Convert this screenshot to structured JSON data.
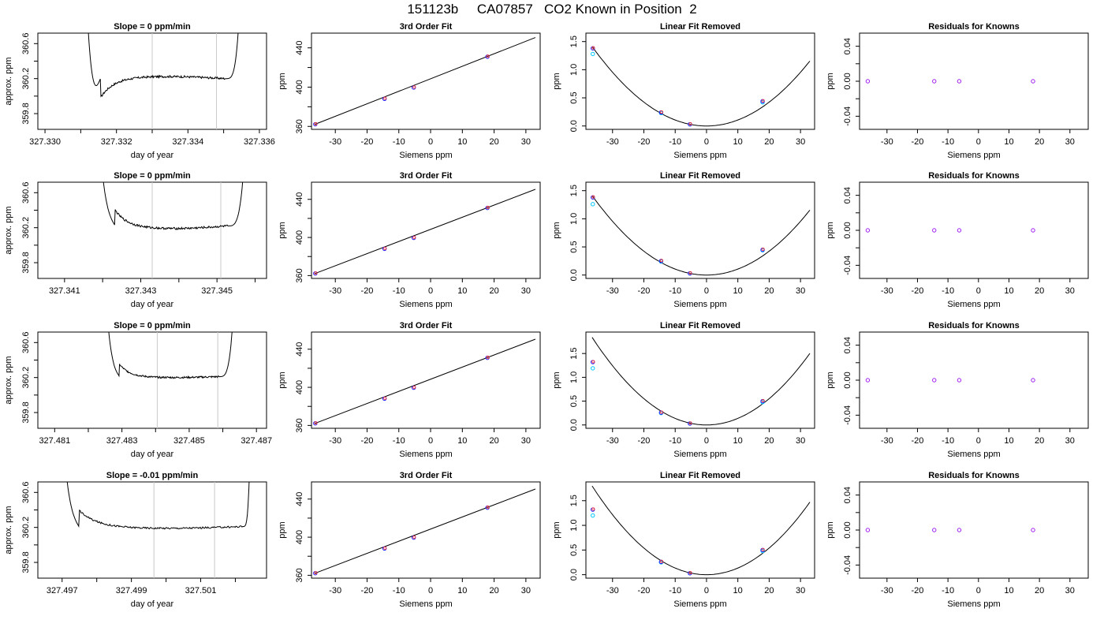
{
  "title": "151123b     CA07857   CO2 Known in Position  2",
  "colors": {
    "line": "#000000",
    "vline": "#c8c8c8",
    "point_blue": "#1f1fff",
    "point_cyan": "#00c8ff",
    "point_purple": "#a020f0",
    "point_red": "#ff3030"
  },
  "chart_data": [
    {
      "type": "line",
      "row": 1,
      "col": 1,
      "title": "Slope =  0  ppm/min",
      "xlabel": "day of year",
      "ylabel": "approx. ppm",
      "xlim": [
        327.3298,
        327.3362
      ],
      "ylim": [
        359.62,
        360.72
      ],
      "xticks": [
        327.33,
        327.331,
        327.332,
        327.333,
        327.334,
        327.335,
        327.336
      ],
      "xtick_labels": [
        "327.330",
        "",
        "327.332",
        "",
        "327.334",
        "",
        "327.336"
      ],
      "yticks": [
        359.8,
        360.0,
        360.2,
        360.4,
        360.6
      ],
      "ytick_labels": [
        "359.8",
        "",
        "360.2",
        "",
        "360.6"
      ],
      "trace": {
        "x0": 327.331,
        "x1": 327.3356,
        "rise": 0.12,
        "fall": 0.12,
        "base": 360.2,
        "plateau_start": 359.98,
        "noise": 0.012,
        "drift": 0.025
      },
      "vlines": [
        327.333,
        327.3348
      ]
    },
    {
      "type": "line",
      "row": 1,
      "col": 2,
      "title": "3rd Order Fit",
      "xlabel": "Siemens ppm",
      "ylabel": "ppm",
      "xlim": [
        -37.5,
        34.5
      ],
      "ylim": [
        357.0,
        455.0
      ],
      "xticks": [
        -30,
        -20,
        -10,
        0,
        10,
        20,
        30
      ],
      "xtick_labels": [
        "-30",
        "-20",
        "-10",
        "0",
        "10",
        "20",
        "30"
      ],
      "yticks": [
        360,
        380,
        400,
        420,
        440
      ],
      "ytick_labels": [
        "360",
        "",
        "400",
        "",
        "440"
      ],
      "fit": {
        "slope": 1.274,
        "intercept": 408.5,
        "x0": -36.5,
        "x1": 33.0
      },
      "points": {
        "x": [
          -36.3,
          -14.5,
          -5.3,
          17.9
        ],
        "y": [
          362.2,
          388.1,
          399.6,
          431.0
        ]
      }
    },
    {
      "type": "line",
      "row": 1,
      "col": 3,
      "title": "Linear Fit Removed",
      "xlabel": "Siemens ppm",
      "ylabel": "ppm",
      "xlim": [
        -38.5,
        34.5
      ],
      "ylim": [
        -0.06,
        1.65
      ],
      "xticks": [
        -30,
        -20,
        -10,
        0,
        10,
        20,
        30
      ],
      "xtick_labels": [
        "-30",
        "-20",
        "-10",
        "0",
        "10",
        "20",
        "30"
      ],
      "yticks": [
        0.0,
        0.5,
        1.0,
        1.5
      ],
      "ytick_labels": [
        "0.0",
        "0.5",
        "1.0",
        "1.5"
      ],
      "curve": {
        "a": 0.00106,
        "b": 0.0,
        "c": 0.0,
        "x0": -36.5,
        "x1": 33.0
      },
      "points": {
        "x": [
          -36.3,
          -14.5,
          -5.3,
          17.9
        ],
        "y": [
          1.38,
          0.24,
          0.03,
          0.44
        ]
      },
      "points_cyan": {
        "x": [
          -36.3,
          -14.5,
          -5.3,
          17.9
        ],
        "y": [
          1.28,
          0.23,
          0.03,
          0.42
        ]
      }
    },
    {
      "type": "scatter",
      "row": 1,
      "col": 4,
      "title": "Residuals for Knowns",
      "xlabel": "Siemens ppm",
      "ylabel": "ppm",
      "xlim": [
        -39.0,
        36.0
      ],
      "ylim": [
        -0.055,
        0.055
      ],
      "xticks": [
        -30,
        -20,
        -10,
        0,
        10,
        20,
        30
      ],
      "xtick_labels": [
        "-30",
        "-20",
        "-10",
        "0",
        "10",
        "20",
        "30"
      ],
      "yticks": [
        -0.04,
        -0.02,
        0.0,
        0.02,
        0.04
      ],
      "ytick_labels": [
        "-0.04",
        "",
        "0.00",
        "",
        "0.04"
      ],
      "points": {
        "x": [
          -36.3,
          -14.5,
          -6.3,
          17.9
        ],
        "y": [
          0.0,
          0.0,
          0.0,
          0.0
        ]
      }
    },
    {
      "type": "line",
      "row": 2,
      "col": 1,
      "title": "Slope =  0  ppm/min",
      "xlabel": "day of year",
      "ylabel": "approx. ppm",
      "xlim": [
        327.3403,
        327.3463
      ],
      "ylim": [
        359.62,
        360.72
      ],
      "xticks": [
        327.341,
        327.342,
        327.343,
        327.344,
        327.345,
        327.346
      ],
      "xtick_labels": [
        "327.341",
        "",
        "327.343",
        "",
        "327.345",
        ""
      ],
      "yticks": [
        359.8,
        360.0,
        360.2,
        360.4,
        360.6
      ],
      "ytick_labels": [
        "359.8",
        "",
        "360.2",
        "",
        "360.6"
      ],
      "trace": {
        "x0": 327.3417,
        "x1": 327.3459,
        "rise": 0.15,
        "fall": 0.15,
        "base": 360.22,
        "plateau_start": 360.4,
        "noise": 0.012,
        "drift": -0.03
      },
      "vlines": [
        327.3433,
        327.3451
      ]
    },
    {
      "type": "line",
      "row": 2,
      "col": 2,
      "title": "3rd Order Fit",
      "xlabel": "Siemens ppm",
      "ylabel": "ppm",
      "xlim": [
        -37.5,
        34.5
      ],
      "ylim": [
        357.0,
        458.0
      ],
      "xticks": [
        -30,
        -20,
        -10,
        0,
        10,
        20,
        30
      ],
      "xtick_labels": [
        "-30",
        "-20",
        "-10",
        "0",
        "10",
        "20",
        "30"
      ],
      "yticks": [
        360,
        380,
        400,
        420,
        440
      ],
      "ytick_labels": [
        "360",
        "",
        "400",
        "",
        "440"
      ],
      "fit": {
        "slope": 1.274,
        "intercept": 408.5,
        "x0": -36.5,
        "x1": 33.0
      },
      "points": {
        "x": [
          -36.3,
          -14.5,
          -5.3,
          17.9
        ],
        "y": [
          362.2,
          388.1,
          399.6,
          431.0
        ]
      }
    },
    {
      "type": "line",
      "row": 2,
      "col": 3,
      "title": "Linear Fit Removed",
      "xlabel": "Siemens ppm",
      "ylabel": "ppm",
      "xlim": [
        -38.5,
        34.5
      ],
      "ylim": [
        -0.06,
        1.65
      ],
      "xticks": [
        -30,
        -20,
        -10,
        0,
        10,
        20,
        30
      ],
      "xtick_labels": [
        "-30",
        "-20",
        "-10",
        "0",
        "10",
        "20",
        "30"
      ],
      "yticks": [
        0.0,
        0.5,
        1.0,
        1.5
      ],
      "ytick_labels": [
        "0.0",
        "0.5",
        "1.0",
        "1.5"
      ],
      "curve": {
        "a": 0.00106,
        "b": 0.0,
        "c": 0.0,
        "x0": -36.5,
        "x1": 33.0
      },
      "points": {
        "x": [
          -36.3,
          -14.5,
          -5.3,
          17.9
        ],
        "y": [
          1.38,
          0.25,
          0.03,
          0.45
        ]
      },
      "points_cyan": {
        "x": [
          -36.3,
          -14.5,
          -5.3,
          17.9
        ],
        "y": [
          1.26,
          0.24,
          0.03,
          0.44
        ]
      }
    },
    {
      "type": "scatter",
      "row": 2,
      "col": 4,
      "title": "Residuals for Knowns",
      "xlabel": "Siemens ppm",
      "ylabel": "ppm",
      "xlim": [
        -39.0,
        36.0
      ],
      "ylim": [
        -0.055,
        0.055
      ],
      "xticks": [
        -30,
        -20,
        -10,
        0,
        10,
        20,
        30
      ],
      "xtick_labels": [
        "-30",
        "-20",
        "-10",
        "0",
        "10",
        "20",
        "30"
      ],
      "yticks": [
        -0.04,
        -0.02,
        0.0,
        0.02,
        0.04
      ],
      "ytick_labels": [
        "-0.04",
        "",
        "0.00",
        "",
        "0.04"
      ],
      "points": {
        "x": [
          -36.3,
          -14.5,
          -6.3,
          17.9
        ],
        "y": [
          0.0,
          0.0,
          0.0,
          0.0
        ]
      }
    },
    {
      "type": "line",
      "row": 3,
      "col": 1,
      "title": "Slope =  0  ppm/min",
      "xlabel": "day of year",
      "ylabel": "approx. ppm",
      "xlim": [
        327.4805,
        327.4873
      ],
      "ylim": [
        359.62,
        360.72
      ],
      "xticks": [
        327.481,
        327.482,
        327.483,
        327.484,
        327.485,
        327.486,
        327.487
      ],
      "xtick_labels": [
        "327.481",
        "",
        "327.483",
        "",
        "327.485",
        "",
        "327.487"
      ],
      "yticks": [
        359.8,
        360.0,
        360.2,
        360.4,
        360.6
      ],
      "ytick_labels": [
        "359.8",
        "",
        "360.2",
        "",
        "360.6"
      ],
      "trace": {
        "x0": 327.4823,
        "x1": 327.4865,
        "rise": 0.15,
        "fall": 0.15,
        "base": 360.21,
        "plateau_start": 360.35,
        "noise": 0.01,
        "drift": -0.01
      },
      "vlines": [
        327.48405,
        327.48585
      ]
    },
    {
      "type": "line",
      "row": 3,
      "col": 2,
      "title": "3rd Order Fit",
      "xlabel": "Siemens ppm",
      "ylabel": "ppm",
      "xlim": [
        -37.5,
        34.5
      ],
      "ylim": [
        357.0,
        458.0
      ],
      "xticks": [
        -30,
        -20,
        -10,
        0,
        10,
        20,
        30
      ],
      "xtick_labels": [
        "-30",
        "-20",
        "-10",
        "0",
        "10",
        "20",
        "30"
      ],
      "yticks": [
        360,
        380,
        400,
        420,
        440
      ],
      "ytick_labels": [
        "360",
        "",
        "400",
        "",
        "440"
      ],
      "fit": {
        "slope": 1.274,
        "intercept": 408.5,
        "x0": -36.5,
        "x1": 33.0
      },
      "points": {
        "x": [
          -36.3,
          -14.5,
          -5.3,
          17.9
        ],
        "y": [
          362.2,
          388.1,
          399.6,
          431.0
        ]
      }
    },
    {
      "type": "line",
      "row": 3,
      "col": 3,
      "title": "Linear Fit Removed",
      "xlabel": "Siemens ppm",
      "ylabel": "ppm",
      "xlim": [
        -38.5,
        34.5
      ],
      "ylim": [
        -0.07,
        1.95
      ],
      "xticks": [
        -30,
        -20,
        -10,
        0,
        10,
        20,
        30
      ],
      "xtick_labels": [
        "-30",
        "-20",
        "-10",
        "0",
        "10",
        "20",
        "30"
      ],
      "yticks": [
        0.0,
        0.5,
        1.0,
        1.5
      ],
      "ytick_labels": [
        "0.0",
        "0.5",
        "1.0",
        "1.5"
      ],
      "curve": {
        "a": 0.00138,
        "b": 0.0,
        "c": 0.0,
        "x0": -36.5,
        "x1": 33.0
      },
      "points": {
        "x": [
          -36.3,
          -14.5,
          -5.3,
          17.9
        ],
        "y": [
          1.32,
          0.26,
          0.03,
          0.5
        ]
      },
      "points_cyan": {
        "x": [
          -36.3,
          -14.5,
          -5.3,
          17.9
        ],
        "y": [
          1.19,
          0.25,
          0.03,
          0.48
        ]
      }
    },
    {
      "type": "scatter",
      "row": 3,
      "col": 4,
      "title": "Residuals for Knowns",
      "xlabel": "Siemens ppm",
      "ylabel": "ppm",
      "xlim": [
        -39.0,
        36.0
      ],
      "ylim": [
        -0.055,
        0.055
      ],
      "xticks": [
        -30,
        -20,
        -10,
        0,
        10,
        20,
        30
      ],
      "xtick_labels": [
        "-30",
        "-20",
        "-10",
        "0",
        "10",
        "20",
        "30"
      ],
      "yticks": [
        -0.04,
        -0.02,
        0.0,
        0.02,
        0.04
      ],
      "ytick_labels": [
        "-0.04",
        "",
        "0.00",
        "",
        "0.04"
      ],
      "points": {
        "x": [
          -36.3,
          -14.5,
          -6.3,
          17.9
        ],
        "y": [
          0.0,
          0.0,
          0.0,
          0.0
        ]
      }
    },
    {
      "type": "line",
      "row": 4,
      "col": 1,
      "title": "Slope =  -0.01  ppm/min",
      "xlabel": "day of year",
      "ylabel": "approx. ppm",
      "xlim": [
        327.4963,
        327.5029
      ],
      "ylim": [
        359.62,
        360.72
      ],
      "xticks": [
        327.497,
        327.498,
        327.499,
        327.5,
        327.501,
        327.502
      ],
      "xtick_labels": [
        "327.497",
        "",
        "327.499",
        "",
        "327.501",
        ""
      ],
      "yticks": [
        359.8,
        360.0,
        360.2,
        360.4,
        360.6
      ],
      "ytick_labels": [
        "359.8",
        "",
        "360.2",
        "",
        "360.6"
      ],
      "trace": {
        "x0": 327.4968,
        "x1": 327.5025,
        "rise": 0.12,
        "fall": 0.05,
        "base": 360.21,
        "plateau_start": 360.4,
        "noise": 0.01,
        "drift": -0.02
      },
      "vlines": [
        327.49965,
        327.5014
      ]
    },
    {
      "type": "line",
      "row": 4,
      "col": 2,
      "title": "3rd Order Fit",
      "xlabel": "Siemens ppm",
      "ylabel": "ppm",
      "xlim": [
        -37.5,
        34.5
      ],
      "ylim": [
        357.0,
        458.0
      ],
      "xticks": [
        -30,
        -20,
        -10,
        0,
        10,
        20,
        30
      ],
      "xtick_labels": [
        "-30",
        "-20",
        "-10",
        "0",
        "10",
        "20",
        "30"
      ],
      "yticks": [
        360,
        380,
        400,
        420,
        440
      ],
      "ytick_labels": [
        "360",
        "",
        "400",
        "",
        "440"
      ],
      "fit": {
        "slope": 1.274,
        "intercept": 408.5,
        "x0": -36.5,
        "x1": 33.0
      },
      "points": {
        "x": [
          -36.3,
          -14.5,
          -5.3,
          17.9
        ],
        "y": [
          362.2,
          388.1,
          399.6,
          431.0
        ]
      }
    },
    {
      "type": "line",
      "row": 4,
      "col": 3,
      "title": "Linear Fit Removed",
      "xlabel": "Siemens ppm",
      "ylabel": "ppm",
      "xlim": [
        -38.5,
        34.5
      ],
      "ylim": [
        -0.07,
        1.88
      ],
      "xticks": [
        -30,
        -20,
        -10,
        0,
        10,
        20,
        30
      ],
      "xtick_labels": [
        "-30",
        "-20",
        "-10",
        "0",
        "10",
        "20",
        "30"
      ],
      "yticks": [
        0.0,
        0.5,
        1.0,
        1.5
      ],
      "ytick_labels": [
        "0.0",
        "0.5",
        "1.0",
        "1.5"
      ],
      "curve": {
        "a": 0.00135,
        "b": 0.0,
        "c": 0.0,
        "x0": -36.5,
        "x1": 33.0
      },
      "points": {
        "x": [
          -36.3,
          -14.5,
          -5.3,
          17.9
        ],
        "y": [
          1.32,
          0.26,
          0.03,
          0.5
        ]
      },
      "points_cyan": {
        "x": [
          -36.3,
          -14.5,
          -5.3,
          17.9
        ],
        "y": [
          1.2,
          0.25,
          0.03,
          0.48
        ]
      }
    },
    {
      "type": "scatter",
      "row": 4,
      "col": 4,
      "title": "Residuals for Knowns",
      "xlabel": "Siemens ppm",
      "ylabel": "ppm",
      "xlim": [
        -39.0,
        36.0
      ],
      "ylim": [
        -0.055,
        0.055
      ],
      "xticks": [
        -30,
        -20,
        -10,
        0,
        10,
        20,
        30
      ],
      "xtick_labels": [
        "-30",
        "-20",
        "-10",
        "0",
        "10",
        "20",
        "30"
      ],
      "yticks": [
        -0.04,
        -0.02,
        0.0,
        0.02,
        0.04
      ],
      "ytick_labels": [
        "-0.04",
        "",
        "0.00",
        "",
        "0.04"
      ],
      "points": {
        "x": [
          -36.3,
          -14.5,
          -6.3,
          17.9
        ],
        "y": [
          0.0,
          0.0,
          0.0,
          0.0
        ]
      }
    }
  ]
}
